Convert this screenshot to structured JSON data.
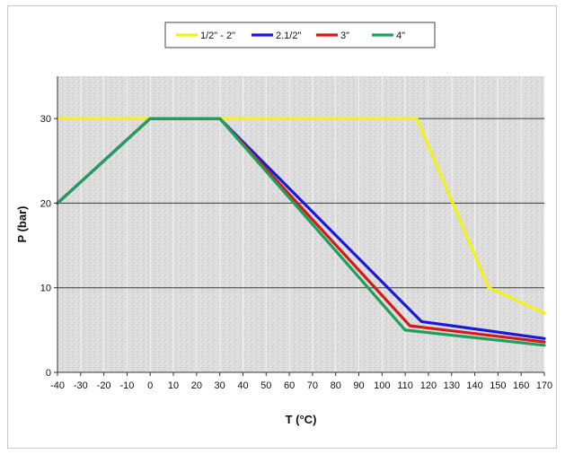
{
  "chart_data": {
    "type": "line",
    "title": "",
    "xlabel": "T (°C)",
    "ylabel": "P (bar)",
    "xlim": [
      -40,
      170
    ],
    "ylim": [
      0,
      35
    ],
    "x_ticks": [
      -40,
      -30,
      -20,
      -10,
      0,
      10,
      20,
      30,
      40,
      50,
      60,
      70,
      80,
      90,
      100,
      110,
      120,
      130,
      140,
      150,
      160,
      170
    ],
    "y_ticks": [
      0,
      10,
      20,
      30
    ],
    "grid": true,
    "legend_position": "top",
    "series": [
      {
        "name": "1/2\" - 2\"",
        "color": "#f2f21a",
        "points": [
          [
            -40,
            30
          ],
          [
            115,
            30
          ],
          [
            146,
            10
          ],
          [
            170,
            7
          ]
        ]
      },
      {
        "name": "2.1/2\"",
        "color": "#1a1ad6",
        "points": [
          [
            -40,
            20
          ],
          [
            0,
            30
          ],
          [
            30,
            30
          ],
          [
            117,
            6
          ],
          [
            170,
            4
          ]
        ]
      },
      {
        "name": "3\"",
        "color": "#d41a1a",
        "points": [
          [
            -40,
            20
          ],
          [
            0,
            30
          ],
          [
            30,
            30
          ],
          [
            112,
            5.5
          ],
          [
            170,
            3.6
          ]
        ]
      },
      {
        "name": "4\"",
        "color": "#1fa05a",
        "points": [
          [
            -40,
            20
          ],
          [
            0,
            30
          ],
          [
            30,
            30
          ],
          [
            110,
            5
          ],
          [
            170,
            3.2
          ]
        ]
      }
    ]
  }
}
